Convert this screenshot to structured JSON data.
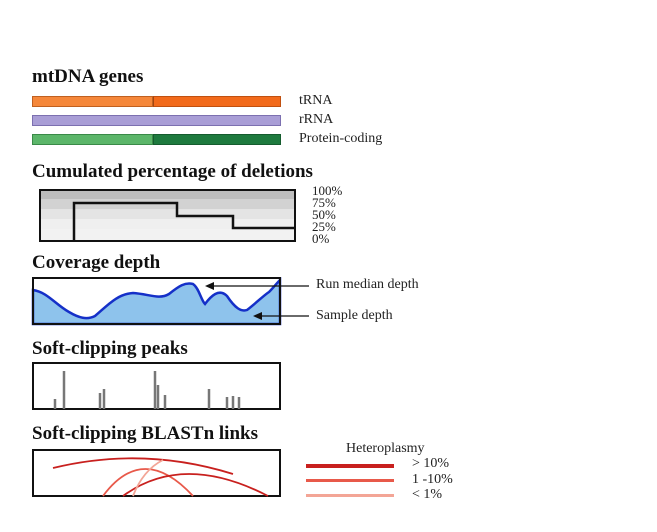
{
  "genes": {
    "title": "mtDNA genes",
    "items": [
      {
        "label": "tRNA",
        "color_left": "#f5873a",
        "color_right": "#f26a1b"
      },
      {
        "label": "rRNA",
        "color_left": "#a99ed6",
        "color_right": "#a99ed6"
      },
      {
        "label": "Protein-coding",
        "color_left": "#5cb66a",
        "color_right": "#1e7a3e"
      }
    ]
  },
  "deletions": {
    "title": "Cumulated percentage of deletions",
    "levels": [
      "100%",
      "75%",
      "50%",
      "25%",
      "0%"
    ]
  },
  "coverage": {
    "title": "Coverage depth",
    "run_median_label": "Run median depth",
    "sample_label": "Sample depth",
    "fill_color": "#8ec3ec",
    "line_color": "#1530c8"
  },
  "softclip": {
    "title": "Soft-clipping peaks"
  },
  "blast": {
    "title": "Soft-clipping BLASTn links",
    "legend_title": "Heteroplasmy",
    "levels": [
      {
        "label": "> 10%",
        "color": "#c8201e"
      },
      {
        "label": "1 -10%",
        "color": "#e8594a"
      },
      {
        "label": "< 1%",
        "color": "#f3a596"
      }
    ]
  }
}
